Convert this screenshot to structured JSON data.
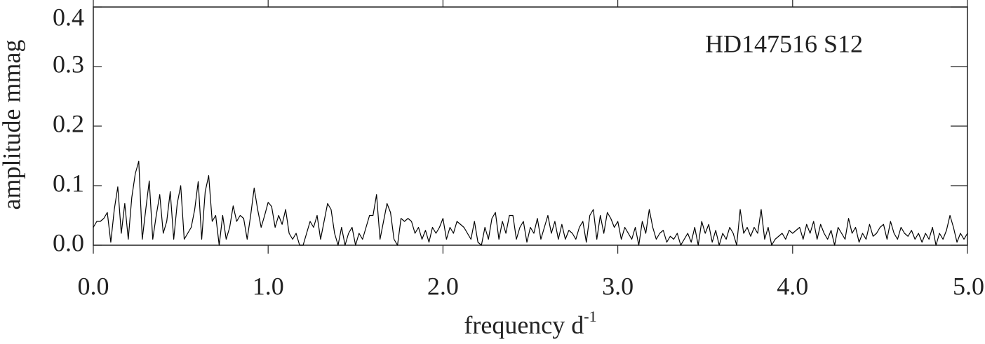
{
  "chart_data": {
    "type": "line",
    "annotation": "HD147516 S12",
    "x_label": "frequency d",
    "x_label_superscript": "-1",
    "y_label": "amplitude mmag",
    "xlim": [
      0,
      5
    ],
    "ylim": [
      0,
      0.4
    ],
    "xticks": [
      {
        "value": 0,
        "label": "0.0"
      },
      {
        "value": 1,
        "label": "1.0"
      },
      {
        "value": 2,
        "label": "2.0"
      },
      {
        "value": 3,
        "label": "3.0"
      },
      {
        "value": 4,
        "label": "4.0"
      },
      {
        "value": 5,
        "label": "5.0"
      }
    ],
    "yticks": [
      {
        "value": 0,
        "label": "0.0"
      },
      {
        "value": 0.1,
        "label": "0.1"
      },
      {
        "value": 0.2,
        "label": "0.2"
      },
      {
        "value": 0.3,
        "label": "0.3"
      },
      {
        "value": 0.4,
        "label": "0.4"
      }
    ],
    "color": "#000000",
    "x": [
      0,
      0.02,
      0.04,
      0.06,
      0.08,
      0.1,
      0.12,
      0.14,
      0.16,
      0.18,
      0.2,
      0.22,
      0.24,
      0.26,
      0.28,
      0.3,
      0.32,
      0.34,
      0.36,
      0.38,
      0.4,
      0.42,
      0.44,
      0.46,
      0.48,
      0.5,
      0.52,
      0.54,
      0.56,
      0.58,
      0.6,
      0.62,
      0.64,
      0.66,
      0.68,
      0.7,
      0.72,
      0.74,
      0.76,
      0.78,
      0.8,
      0.82,
      0.84,
      0.86,
      0.88,
      0.9,
      0.92,
      0.94,
      0.96,
      0.98,
      1,
      1.02,
      1.04,
      1.06,
      1.08,
      1.1,
      1.12,
      1.14,
      1.16,
      1.18,
      1.2,
      1.22,
      1.24,
      1.26,
      1.28,
      1.3,
      1.32,
      1.34,
      1.36,
      1.38,
      1.4,
      1.42,
      1.44,
      1.46,
      1.48,
      1.5,
      1.52,
      1.54,
      1.56,
      1.58,
      1.6,
      1.62,
      1.64,
      1.66,
      1.68,
      1.7,
      1.72,
      1.74,
      1.76,
      1.78,
      1.8,
      1.82,
      1.84,
      1.86,
      1.88,
      1.9,
      1.92,
      1.94,
      1.96,
      1.98,
      2,
      2.02,
      2.04,
      2.06,
      2.08,
      2.1,
      2.12,
      2.14,
      2.16,
      2.18,
      2.2,
      2.22,
      2.24,
      2.26,
      2.28,
      2.3,
      2.32,
      2.34,
      2.36,
      2.38,
      2.4,
      2.42,
      2.44,
      2.46,
      2.48,
      2.5,
      2.52,
      2.54,
      2.56,
      2.58,
      2.6,
      2.62,
      2.64,
      2.66,
      2.68,
      2.7,
      2.72,
      2.74,
      2.76,
      2.78,
      2.8,
      2.82,
      2.84,
      2.86,
      2.88,
      2.9,
      2.92,
      2.94,
      2.96,
      2.98,
      3,
      3.02,
      3.04,
      3.06,
      3.08,
      3.1,
      3.12,
      3.14,
      3.16,
      3.18,
      3.2,
      3.22,
      3.24,
      3.26,
      3.28,
      3.3,
      3.32,
      3.34,
      3.36,
      3.38,
      3.4,
      3.42,
      3.44,
      3.46,
      3.48,
      3.5,
      3.52,
      3.54,
      3.56,
      3.58,
      3.6,
      3.62,
      3.64,
      3.66,
      3.68,
      3.7,
      3.72,
      3.74,
      3.76,
      3.78,
      3.8,
      3.82,
      3.84,
      3.86,
      3.88,
      3.9,
      3.92,
      3.94,
      3.96,
      3.98,
      4,
      4.02,
      4.04,
      4.06,
      4.08,
      4.1,
      4.12,
      4.14,
      4.16,
      4.18,
      4.2,
      4.22,
      4.24,
      4.26,
      4.28,
      4.3,
      4.32,
      4.34,
      4.36,
      4.38,
      4.4,
      4.42,
      4.44,
      4.46,
      4.48,
      4.5,
      4.52,
      4.54,
      4.56,
      4.58,
      4.6,
      4.62,
      4.64,
      4.66,
      4.68,
      4.7,
      4.72,
      4.74,
      4.76,
      4.78,
      4.8,
      4.82,
      4.84,
      4.86,
      4.88,
      4.9,
      4.92,
      4.94,
      4.96,
      4.98,
      5
    ],
    "values": [
      0.03,
      0.04,
      0.04,
      0.045,
      0.055,
      0.005,
      0.06,
      0.098,
      0.02,
      0.07,
      0.01,
      0.08,
      0.12,
      0.141,
      0.01,
      0.06,
      0.108,
      0.01,
      0.05,
      0.085,
      0.02,
      0.04,
      0.09,
      0.01,
      0.07,
      0.1,
      0.01,
      0.02,
      0.03,
      0.06,
      0.107,
      0.01,
      0.09,
      0.117,
      0.04,
      0.05,
      0.0,
      0.05,
      0.01,
      0.03,
      0.066,
      0.04,
      0.05,
      0.045,
      0.01,
      0.05,
      0.096,
      0.06,
      0.03,
      0.05,
      0.072,
      0.065,
      0.03,
      0.05,
      0.035,
      0.06,
      0.02,
      0.01,
      0.02,
      0.0,
      0.0,
      0.02,
      0.04,
      0.03,
      0.05,
      0.01,
      0.04,
      0.07,
      0.06,
      0.02,
      0.0,
      0.03,
      0.0,
      0.02,
      0.03,
      0.0,
      0.02,
      0.01,
      0.03,
      0.05,
      0.05,
      0.085,
      0.01,
      0.04,
      0.07,
      0.055,
      0.01,
      0.0,
      0.045,
      0.04,
      0.045,
      0.04,
      0.02,
      0.03,
      0.01,
      0.025,
      0.005,
      0.03,
      0.02,
      0.03,
      0.045,
      0.01,
      0.03,
      0.02,
      0.04,
      0.035,
      0.03,
      0.02,
      0.01,
      0.04,
      0.005,
      0.0,
      0.03,
      0.01,
      0.045,
      0.055,
      0.01,
      0.04,
      0.02,
      0.05,
      0.05,
      0.01,
      0.03,
      0.04,
      0.005,
      0.03,
      0.02,
      0.045,
      0.01,
      0.03,
      0.05,
      0.02,
      0.04,
      0.01,
      0.035,
      0.01,
      0.025,
      0.02,
      0.01,
      0.03,
      0.04,
      0.005,
      0.05,
      0.06,
      0.01,
      0.05,
      0.02,
      0.055,
      0.045,
      0.03,
      0.04,
      0.01,
      0.03,
      0.02,
      0.01,
      0.03,
      0.0,
      0.04,
      0.02,
      0.06,
      0.03,
      0.01,
      0.02,
      0.025,
      0.005,
      0.015,
      0.01,
      0.02,
      0.0,
      0.01,
      0.02,
      0.005,
      0.03,
      0.0,
      0.04,
      0.02,
      0.035,
      0.005,
      0.025,
      0.0,
      0.02,
      0.01,
      0.03,
      0.02,
      0.0,
      0.06,
      0.02,
      0.03,
      0.015,
      0.03,
      0.02,
      0.06,
      0.01,
      0.03,
      0.0,
      0.01,
      0.015,
      0.02,
      0.01,
      0.025,
      0.02,
      0.025,
      0.03,
      0.01,
      0.035,
      0.02,
      0.04,
      0.01,
      0.035,
      0.02,
      0.01,
      0.025,
      0.0,
      0.03,
      0.02,
      0.01,
      0.045,
      0.02,
      0.03,
      0.005,
      0.02,
      0.01,
      0.035,
      0.015,
      0.02,
      0.03,
      0.035,
      0.01,
      0.04,
      0.02,
      0.01,
      0.03,
      0.02,
      0.015,
      0.025,
      0.01,
      0.02,
      0.005,
      0.02,
      0.01,
      0.03,
      0.0,
      0.02,
      0.01,
      0.025,
      0.05,
      0.03,
      0.005,
      0.02,
      0.01,
      0.02
    ]
  }
}
